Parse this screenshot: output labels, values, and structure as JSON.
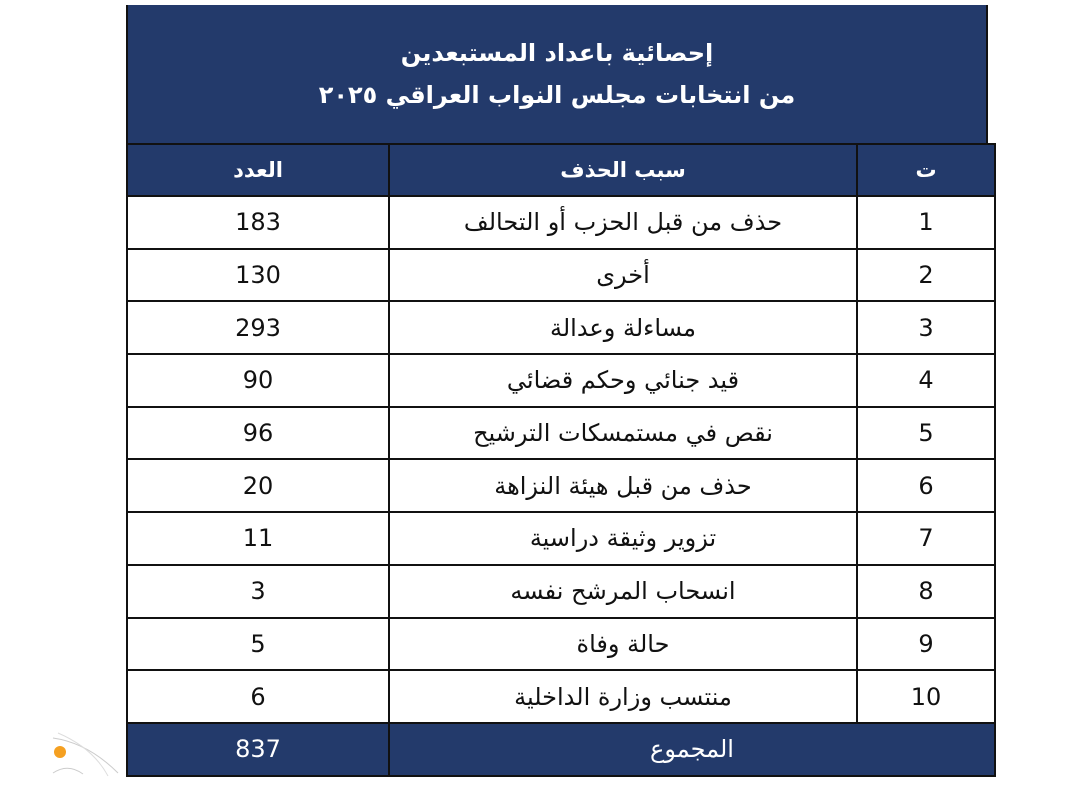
{
  "title": {
    "line1": "إحصائية باعداد المستبعدين",
    "line2": "من انتخابات مجلس النواب العراقي ٢٠٢٥"
  },
  "table": {
    "headers": {
      "index": "ت",
      "reason": "سبب الحذف",
      "count": "العدد"
    },
    "rows": [
      {
        "index": "1",
        "reason": "حذف من قبل الحزب أو التحالف",
        "count": "183"
      },
      {
        "index": "2",
        "reason": "أخرى",
        "count": "130"
      },
      {
        "index": "3",
        "reason": "مساءلة وعدالة",
        "count": "293"
      },
      {
        "index": "4",
        "reason": "قيد جنائي وحكم قضائي",
        "count": "90"
      },
      {
        "index": "5",
        "reason": "نقص في مستمسكات الترشيح",
        "count": "96"
      },
      {
        "index": "6",
        "reason": "حذف من قبل هيئة النزاهة",
        "count": "20"
      },
      {
        "index": "7",
        "reason": "تزوير وثيقة دراسية",
        "count": "11"
      },
      {
        "index": "8",
        "reason": "انسحاب المرشح نفسه",
        "count": "3"
      },
      {
        "index": "9",
        "reason": "حالة وفاة",
        "count": "5"
      },
      {
        "index": "10",
        "reason": "منتسب وزارة الداخلية",
        "count": "6"
      }
    ],
    "total": {
      "label": "المجموع",
      "count": "837"
    }
  },
  "colors": {
    "header_bg": "#233a6b",
    "logo_accent": "#f5a021"
  }
}
